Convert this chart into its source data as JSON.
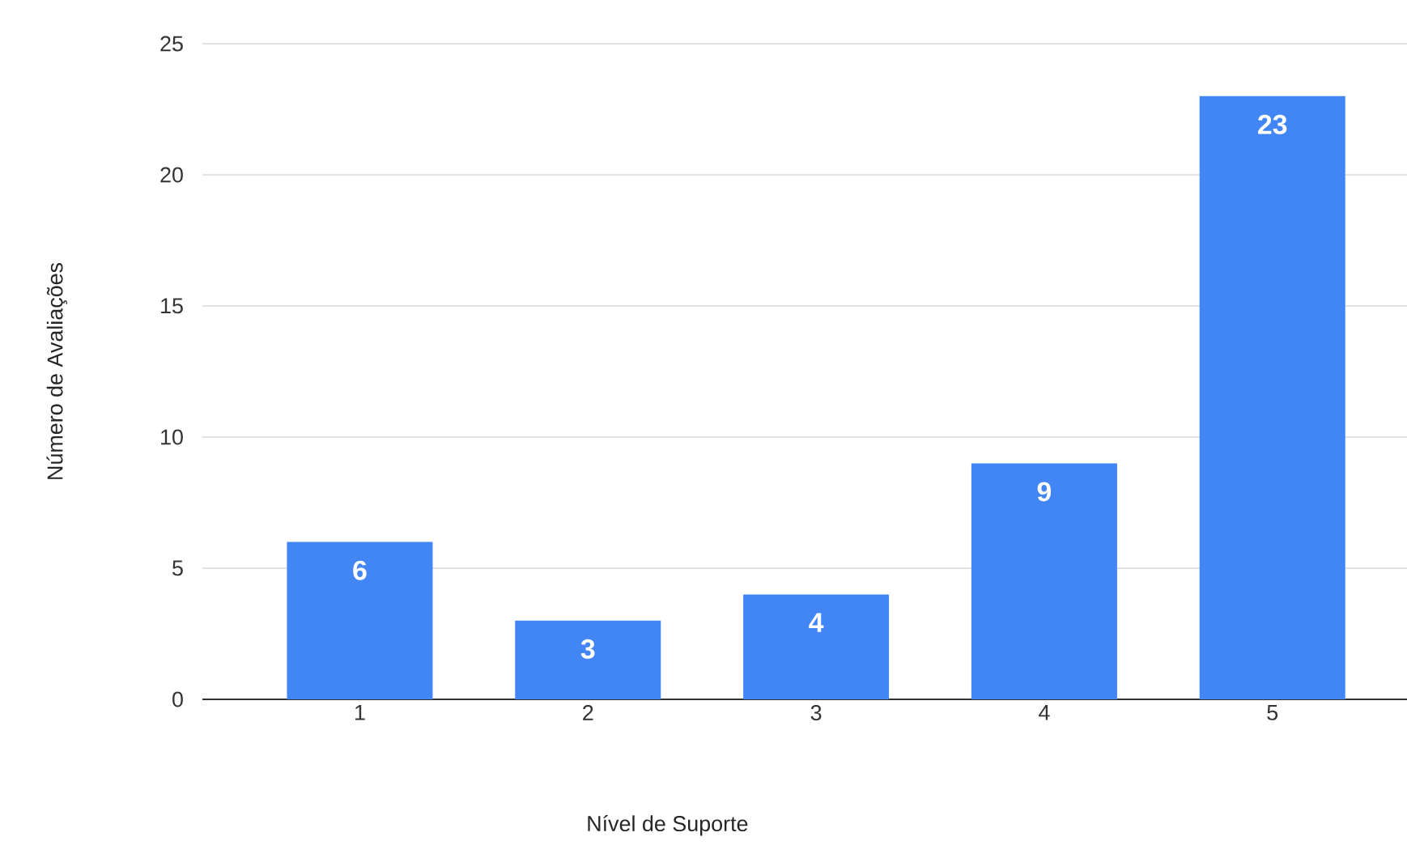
{
  "chart_data": {
    "type": "bar",
    "categories": [
      "1",
      "2",
      "3",
      "4",
      "5"
    ],
    "values": [
      6,
      3,
      4,
      9,
      23
    ],
    "value_labels": [
      "6",
      "3",
      "4",
      "9",
      "23"
    ],
    "color": "#4285f4",
    "xlabel": "Nível de Suporte",
    "ylabel": "Número de Avaliações",
    "ylim": [
      0,
      25
    ],
    "yticks": [
      0,
      5,
      10,
      15,
      20,
      25
    ],
    "grid": "y"
  }
}
